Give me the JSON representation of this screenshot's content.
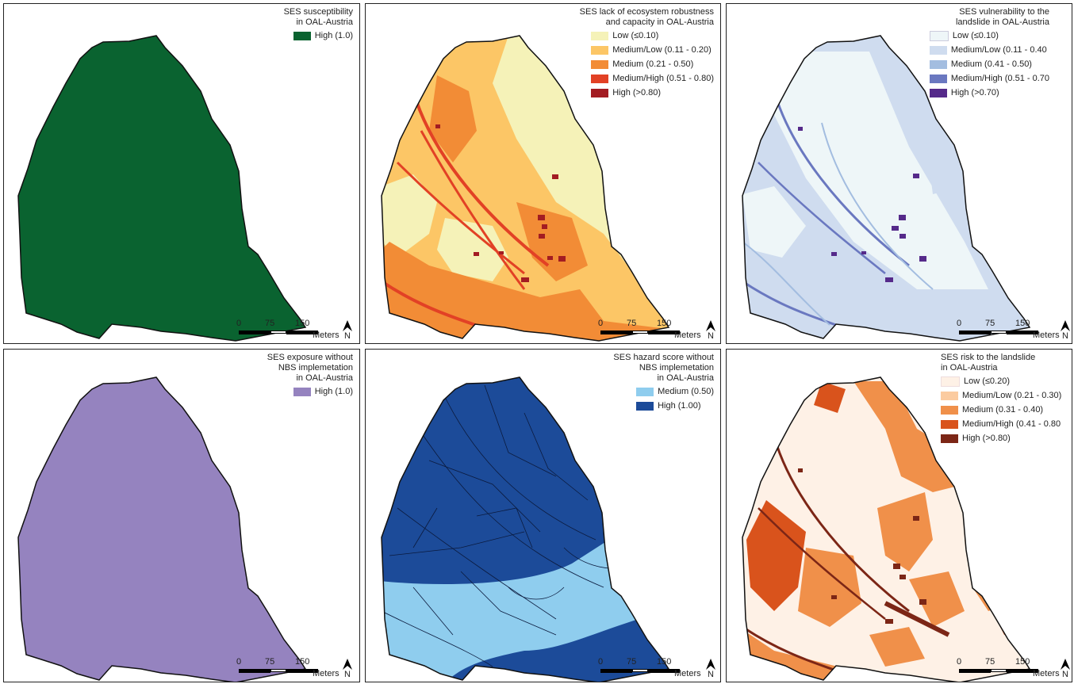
{
  "panels": [
    {
      "id": "susceptibility",
      "title_lines": [
        "SES susceptibility",
        "in OAL-Austria"
      ],
      "legend": [
        {
          "label": "High (1.0)",
          "color": "#0a6330"
        }
      ],
      "fill": "#0a6330"
    },
    {
      "id": "ecosystem",
      "title_lines": [
        "SES lack of  ecosystem robustness",
        "and capacity in OAL-Austria"
      ],
      "legend": [
        {
          "label": "Low (≤0.10)",
          "color": "#f5f2b8"
        },
        {
          "label": "Medium/Low (0.11 - 0.20)",
          "color": "#fcc666"
        },
        {
          "label": "Medium (0.21 - 0.50)",
          "color": "#f28c36"
        },
        {
          "label": "Medium/High (0.51 - 0.80)",
          "color": "#e24125"
        },
        {
          "label": "High (>0.80)",
          "color": "#a31c22"
        }
      ]
    },
    {
      "id": "vulnerability",
      "title_lines": [
        "SES vulnerability to the",
        "landslide in OAL-Austria"
      ],
      "legend": [
        {
          "label": "Low (≤0.10)",
          "color": "#eef6f8"
        },
        {
          "label": "Medium/Low (0.11 - 0.40",
          "color": "#cfdcef"
        },
        {
          "label": "Medium (0.41 - 0.50)",
          "color": "#a3bde0"
        },
        {
          "label": "Medium/High (0.51 - 0.70",
          "color": "#6a78c0"
        },
        {
          "label": "High (>0.70)",
          "color": "#552a8a"
        }
      ]
    },
    {
      "id": "exposure",
      "title_lines": [
        "SES exposure without",
        "NBS implemetation",
        "in OAL-Austria"
      ],
      "legend": [
        {
          "label": "High (1.0)",
          "color": "#9583bf"
        }
      ],
      "fill": "#9583bf"
    },
    {
      "id": "hazard",
      "title_lines": [
        "SES hazard score without",
        "NBS implemetation",
        "in OAL-Austria"
      ],
      "legend": [
        {
          "label": "Medium (0.50)",
          "color": "#8fcdee"
        },
        {
          "label": "High (1.00)",
          "color": "#1c4b99"
        }
      ]
    },
    {
      "id": "risk",
      "title_lines": [
        "SES risk to the landslide",
        "in OAL-Austria"
      ],
      "legend": [
        {
          "label": "Low (≤0.20)",
          "color": "#fef1e6"
        },
        {
          "label": "Medium/Low (0.21 - 0.30)",
          "color": "#fbcba0"
        },
        {
          "label": "Medium (0.31 - 0.40)",
          "color": "#f0904a"
        },
        {
          "label": "Medium/High (0.41 - 0.80",
          "color": "#d9531c"
        },
        {
          "label": "High (>0.80)",
          "color": "#7c2616"
        }
      ]
    }
  ],
  "scale": {
    "ticks": [
      "0",
      "75",
      "150"
    ],
    "unit": "Meters"
  },
  "north_label": "N"
}
